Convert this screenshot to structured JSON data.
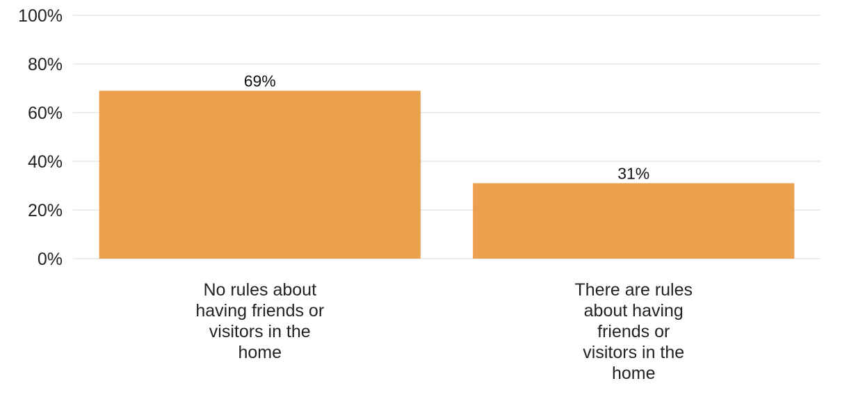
{
  "chart_data": {
    "type": "bar",
    "categories": [
      "No rules about having friends or visitors in the home",
      "There are rules about having friends or visitors in the home"
    ],
    "category_lines": [
      [
        "No rules about",
        "having friends or",
        "visitors in the",
        "home"
      ],
      [
        "There are rules",
        "about having",
        "friends or",
        "visitors in the",
        "home"
      ]
    ],
    "values": [
      69,
      31
    ],
    "data_labels": [
      "69%",
      "31%"
    ],
    "ylim": [
      0,
      100
    ],
    "yticks": [
      0,
      20,
      40,
      60,
      80,
      100
    ],
    "ytick_labels": [
      "0%",
      "20%",
      "40%",
      "60%",
      "80%",
      "100%"
    ],
    "grid": true,
    "legend": "none",
    "bar_color": "#EBA04D"
  }
}
